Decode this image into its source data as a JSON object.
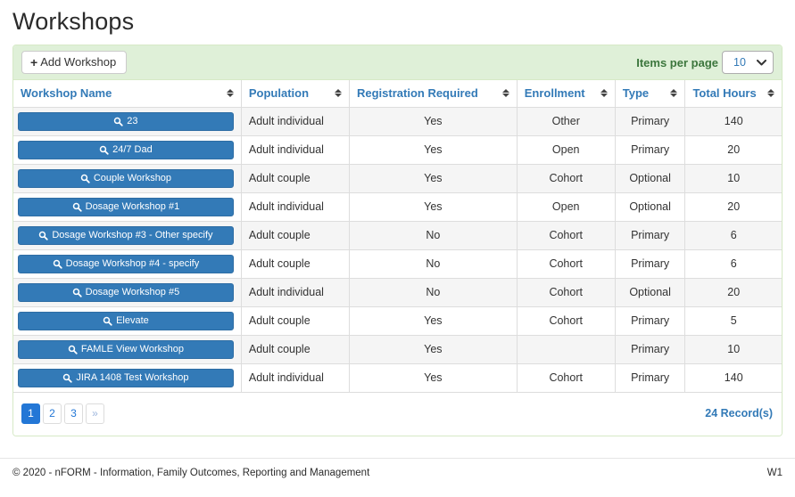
{
  "page": {
    "title": "Workshops"
  },
  "toolbar": {
    "add_button_label": "Add Workshop",
    "items_per_page_label": "Items per page",
    "items_per_page_value": "10",
    "items_per_page_options": [
      "10"
    ]
  },
  "table": {
    "columns": [
      "Workshop Name",
      "Population",
      "Registration Required",
      "Enrollment",
      "Type",
      "Total Hours"
    ],
    "rows": [
      {
        "name": "23",
        "population": "Adult individual",
        "registration_required": "Yes",
        "enrollment": "Other",
        "type": "Primary",
        "total_hours": "140"
      },
      {
        "name": "24/7 Dad",
        "population": "Adult individual",
        "registration_required": "Yes",
        "enrollment": "Open",
        "type": "Primary",
        "total_hours": "20"
      },
      {
        "name": "Couple Workshop",
        "population": "Adult couple",
        "registration_required": "Yes",
        "enrollment": "Cohort",
        "type": "Optional",
        "total_hours": "10"
      },
      {
        "name": "Dosage Workshop #1",
        "population": "Adult individual",
        "registration_required": "Yes",
        "enrollment": "Open",
        "type": "Optional",
        "total_hours": "20"
      },
      {
        "name": "Dosage Workshop #3 - Other specify",
        "population": "Adult couple",
        "registration_required": "No",
        "enrollment": "Cohort",
        "type": "Primary",
        "total_hours": "6"
      },
      {
        "name": "Dosage Workshop #4 - specify",
        "population": "Adult couple",
        "registration_required": "No",
        "enrollment": "Cohort",
        "type": "Primary",
        "total_hours": "6"
      },
      {
        "name": "Dosage Workshop #5",
        "population": "Adult individual",
        "registration_required": "No",
        "enrollment": "Cohort",
        "type": "Optional",
        "total_hours": "20"
      },
      {
        "name": "Elevate",
        "population": "Adult couple",
        "registration_required": "Yes",
        "enrollment": "Cohort",
        "type": "Primary",
        "total_hours": "5"
      },
      {
        "name": "FAMLE View Workshop",
        "population": "Adult couple",
        "registration_required": "Yes",
        "enrollment": "",
        "type": "Primary",
        "total_hours": "10"
      },
      {
        "name": "JIRA 1408 Test Workshop",
        "population": "Adult individual",
        "registration_required": "Yes",
        "enrollment": "Cohort",
        "type": "Primary",
        "total_hours": "140"
      }
    ]
  },
  "pagination": {
    "pages": [
      "1",
      "2",
      "3",
      "»"
    ],
    "active_page": "1",
    "records_label": "24 Record(s)"
  },
  "footer": {
    "copyright": "© 2020 - nFORM - Information, Family Outcomes, Reporting and Management",
    "version": "W1"
  },
  "icons": {
    "add": "plus-icon",
    "workshop_view": "search-icon",
    "column_sort": "sort-icon",
    "select_caret": "chevron-down-icon"
  },
  "colors": {
    "accent_blue": "#337ab7",
    "button_border_blue": "#2e6da4",
    "active_page_blue": "#2377d6",
    "toolbar_green_bg": "#dff0d8",
    "panel_border_green": "#d6e9c6",
    "items_per_page_text": "#3c763d",
    "row_stripe": "#f5f5f5",
    "cell_border": "#dddddd"
  }
}
